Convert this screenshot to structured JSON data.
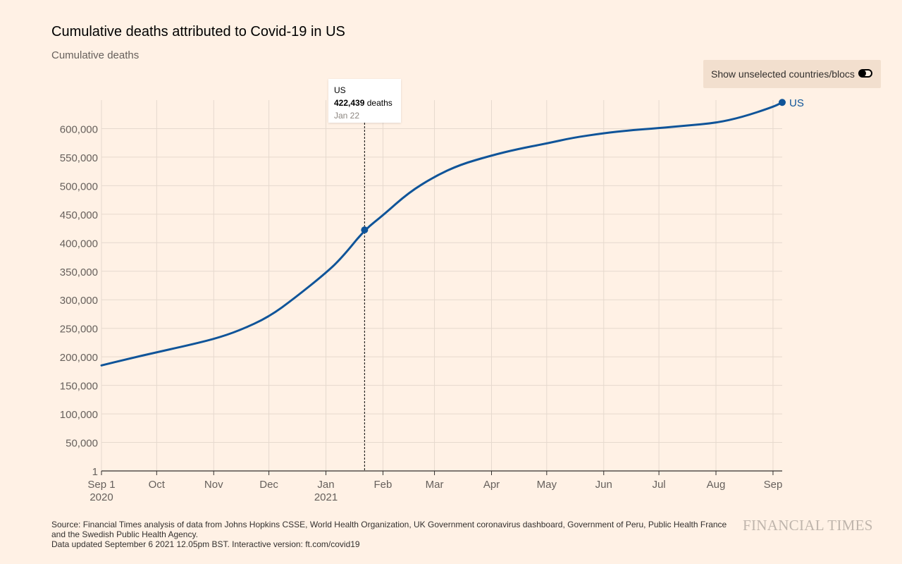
{
  "header": {
    "title": "Cumulative deaths attributed to Covid-19 in US",
    "subtitle": "Cumulative deaths"
  },
  "toggle": {
    "label": "Show unselected countries/blocs",
    "state": "off"
  },
  "tooltip": {
    "series": "US",
    "value": "422,439",
    "unit": "deaths",
    "date": "Jan 22"
  },
  "footer": {
    "source": "Source: Financial Times analysis of data from Johns Hopkins CSSE, World Health Organization, UK Government coronavirus dashboard, Government of Peru, Public Health France and the Swedish Public Health Agency.",
    "updated": "Data updated September 6 2021 12.05pm BST. Interactive version: ft.com/covid19",
    "logo": "FINANCIAL TIMES"
  },
  "colors": {
    "background": "#FFF1E5",
    "line": "#0F5499",
    "grid": "#E6D9CE",
    "axis": "#33302E",
    "tick_text": "#66605C"
  },
  "chart_data": {
    "type": "line",
    "title": "Cumulative deaths attributed to Covid-19 in US",
    "subtitle": "Cumulative deaths",
    "xlabel": "",
    "ylabel": "",
    "x_range": [
      "2020-09-01",
      "2021-09-06"
    ],
    "ylim": [
      1,
      650000
    ],
    "y_ticks": [
      1,
      50000,
      100000,
      150000,
      200000,
      250000,
      300000,
      350000,
      400000,
      450000,
      500000,
      550000,
      600000
    ],
    "y_tick_labels": [
      "1",
      "50,000",
      "100,000",
      "150,000",
      "200,000",
      "250,000",
      "300,000",
      "350,000",
      "400,000",
      "450,000",
      "500,000",
      "550,000",
      "600,000"
    ],
    "x_ticks": [
      {
        "date": "2020-09-01",
        "label": "Sep 1",
        "sublabel": "2020"
      },
      {
        "date": "2020-10-01",
        "label": "Oct",
        "sublabel": ""
      },
      {
        "date": "2020-11-01",
        "label": "Nov",
        "sublabel": ""
      },
      {
        "date": "2020-12-01",
        "label": "Dec",
        "sublabel": ""
      },
      {
        "date": "2021-01-01",
        "label": "Jan",
        "sublabel": "2021"
      },
      {
        "date": "2021-02-01",
        "label": "Feb",
        "sublabel": ""
      },
      {
        "date": "2021-03-01",
        "label": "Mar",
        "sublabel": ""
      },
      {
        "date": "2021-04-01",
        "label": "Apr",
        "sublabel": ""
      },
      {
        "date": "2021-05-01",
        "label": "May",
        "sublabel": ""
      },
      {
        "date": "2021-06-01",
        "label": "Jun",
        "sublabel": ""
      },
      {
        "date": "2021-07-01",
        "label": "Jul",
        "sublabel": ""
      },
      {
        "date": "2021-08-01",
        "label": "Aug",
        "sublabel": ""
      },
      {
        "date": "2021-09-01",
        "label": "Sep",
        "sublabel": ""
      }
    ],
    "grid": true,
    "series": [
      {
        "name": "US",
        "color": "#0F5499",
        "points": [
          [
            "2020-09-01",
            185000
          ],
          [
            "2020-09-15",
            196000
          ],
          [
            "2020-10-01",
            208000
          ],
          [
            "2020-10-15",
            218000
          ],
          [
            "2020-11-01",
            231000
          ],
          [
            "2020-11-15",
            246000
          ],
          [
            "2020-12-01",
            270000
          ],
          [
            "2020-12-15",
            303000
          ],
          [
            "2021-01-01",
            347000
          ],
          [
            "2021-01-10",
            375000
          ],
          [
            "2021-01-22",
            422439
          ],
          [
            "2021-02-01",
            448000
          ],
          [
            "2021-02-15",
            488000
          ],
          [
            "2021-03-01",
            516000
          ],
          [
            "2021-03-15",
            537000
          ],
          [
            "2021-04-01",
            553000
          ],
          [
            "2021-04-15",
            564000
          ],
          [
            "2021-05-01",
            574000
          ],
          [
            "2021-05-15",
            584000
          ],
          [
            "2021-06-01",
            592000
          ],
          [
            "2021-06-15",
            597000
          ],
          [
            "2021-07-01",
            601000
          ],
          [
            "2021-07-15",
            605000
          ],
          [
            "2021-08-01",
            610000
          ],
          [
            "2021-08-15",
            620000
          ],
          [
            "2021-09-01",
            638000
          ],
          [
            "2021-09-06",
            646000
          ]
        ]
      }
    ],
    "highlight": {
      "date": "2021-01-22",
      "value": 422439
    },
    "end_label": "US"
  }
}
